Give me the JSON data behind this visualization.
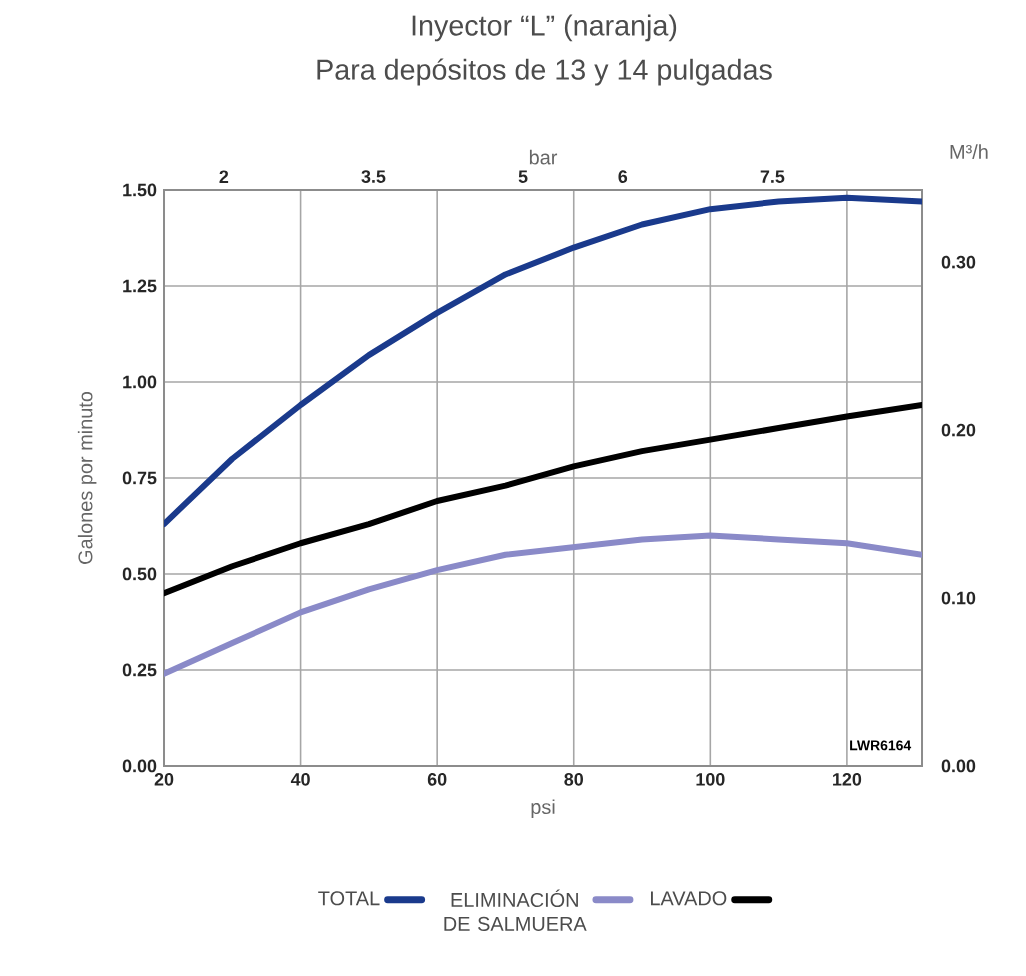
{
  "chart_data": {
    "type": "line",
    "title": "Inyector “L” (naranja)",
    "subtitle": "Para depósitos de 13 y 14 pulgadas",
    "xlabel": "psi",
    "ylabel": "Galones por minuto",
    "x2label": "bar",
    "y2label": "M³/h",
    "annotations": [
      "LWR6164"
    ],
    "x": [
      20,
      30,
      40,
      50,
      60,
      70,
      80,
      90,
      100,
      110,
      120,
      131
    ],
    "series": [
      {
        "name": "TOTAL",
        "color": "#1a3a8c",
        "values": [
          0.63,
          0.8,
          0.94,
          1.07,
          1.18,
          1.28,
          1.35,
          1.41,
          1.45,
          1.47,
          1.48,
          1.47
        ]
      },
      {
        "name": "ELIMINACIÓN DE SALMUERA",
        "color": "#8a8ac8",
        "values": [
          0.24,
          0.32,
          0.4,
          0.46,
          0.51,
          0.55,
          0.57,
          0.59,
          0.6,
          0.59,
          0.58,
          0.55
        ]
      },
      {
        "name": "LAVADO",
        "color": "#000000",
        "values": [
          0.45,
          0.52,
          0.58,
          0.63,
          0.69,
          0.73,
          0.78,
          0.82,
          0.85,
          0.88,
          0.91,
          0.94
        ]
      }
    ],
    "xlim": [
      20,
      131
    ],
    "ylim": [
      0,
      1.5
    ],
    "xticks": [
      20,
      40,
      60,
      80,
      100,
      120
    ],
    "yticks": [
      {
        "value": 0,
        "label": "0.00"
      },
      {
        "value": 0.25,
        "label": "0.25"
      },
      {
        "value": 0.5,
        "label": "0.50"
      },
      {
        "value": 0.75,
        "label": "0.75"
      },
      {
        "value": 1,
        "label": "1.00"
      },
      {
        "value": 1.25,
        "label": "1.25"
      },
      {
        "value": 1.5,
        "label": "1.50"
      }
    ],
    "x2lim": [
      1.4,
      9.0
    ],
    "x2ticks": [
      2,
      3.5,
      5,
      6,
      7.5
    ],
    "y2lim": [
      0,
      0.343
    ],
    "y2ticks": [
      {
        "value": 0,
        "label": "0.00"
      },
      {
        "value": 0.1,
        "label": "0.10"
      },
      {
        "value": 0.2,
        "label": "0.20"
      },
      {
        "value": 0.3,
        "label": "0.30"
      }
    ],
    "grid": true,
    "legend": "bottom",
    "marker": "none",
    "line_style": "solid"
  }
}
